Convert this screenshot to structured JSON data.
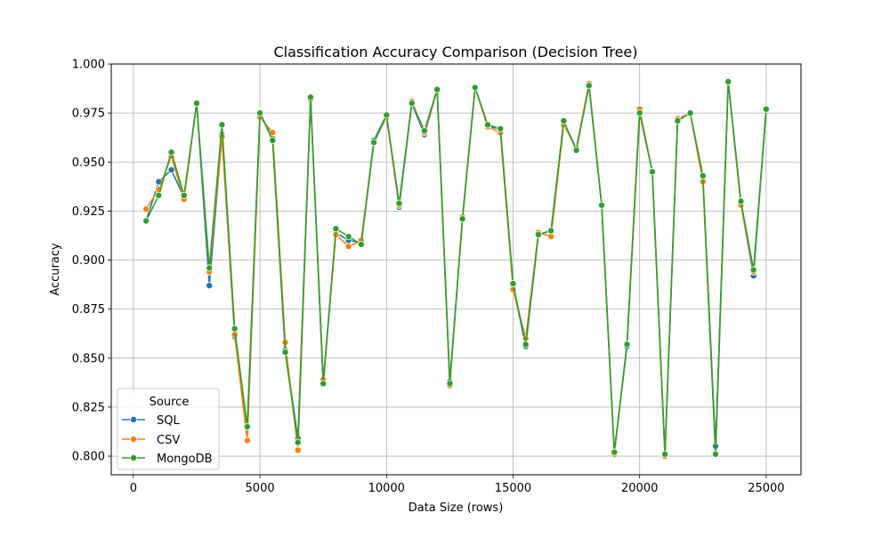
{
  "chart_data": {
    "type": "line",
    "title": "Classification Accuracy Comparison (Decision Tree)",
    "xlabel": "Data Size (rows)",
    "ylabel": "Accuracy",
    "xlim": [
      -875,
      26375
    ],
    "ylim": [
      0.7905,
      1.0
    ],
    "xticks": [
      0,
      5000,
      10000,
      15000,
      20000,
      25000
    ],
    "xtick_labels": [
      "0",
      "5000",
      "10000",
      "15000",
      "20000",
      "25000"
    ],
    "yticks": [
      0.8,
      0.825,
      0.85,
      0.875,
      0.9,
      0.925,
      0.95,
      0.975,
      1.0
    ],
    "ytick_labels": [
      "0.800",
      "0.825",
      "0.850",
      "0.875",
      "0.900",
      "0.925",
      "0.950",
      "0.975",
      "1.000"
    ],
    "grid": true,
    "legend": {
      "title": "Source",
      "position": "lower-left"
    },
    "x": [
      500,
      1000,
      1500,
      2000,
      2500,
      3000,
      3500,
      4000,
      4500,
      5000,
      5500,
      6000,
      6500,
      7000,
      7500,
      8000,
      8500,
      9000,
      9500,
      10000,
      10500,
      11000,
      11500,
      12000,
      12500,
      13000,
      13500,
      14000,
      14500,
      15000,
      15500,
      16000,
      16500,
      17000,
      17500,
      18000,
      18500,
      19000,
      19500,
      20000,
      20500,
      21000,
      21500,
      22000,
      22500,
      23000,
      23500,
      24000,
      24500,
      25000
    ],
    "series": [
      {
        "name": "SQL",
        "color": "#1f77b4",
        "values": [
          0.92,
          0.94,
          0.946,
          0.932,
          0.98,
          0.887,
          0.964,
          0.861,
          0.815,
          0.975,
          0.962,
          0.854,
          0.809,
          0.982,
          0.837,
          0.914,
          0.91,
          0.909,
          0.961,
          0.974,
          0.927,
          0.98,
          0.964,
          0.987,
          0.838,
          0.921,
          0.988,
          0.968,
          0.967,
          0.887,
          0.856,
          0.913,
          0.915,
          0.97,
          0.957,
          0.989,
          0.928,
          0.802,
          0.856,
          0.976,
          0.945,
          0.801,
          0.971,
          0.975,
          0.941,
          0.805,
          0.991,
          0.929,
          0.892,
          0.977
        ]
      },
      {
        "name": "CSV",
        "color": "#ff7f0e",
        "values": [
          0.926,
          0.936,
          0.953,
          0.931,
          0.98,
          0.894,
          0.963,
          0.862,
          0.808,
          0.973,
          0.965,
          0.858,
          0.803,
          0.982,
          0.839,
          0.913,
          0.907,
          0.91,
          0.96,
          0.973,
          0.928,
          0.981,
          0.965,
          0.987,
          0.836,
          0.922,
          0.988,
          0.968,
          0.965,
          0.885,
          0.86,
          0.914,
          0.912,
          0.969,
          0.957,
          0.99,
          0.928,
          0.801,
          0.857,
          0.977,
          0.945,
          0.8,
          0.972,
          0.975,
          0.94,
          0.801,
          0.991,
          0.928,
          0.894,
          0.977
        ]
      },
      {
        "name": "MongoDB",
        "color": "#2ca02c",
        "values": [
          0.92,
          0.933,
          0.955,
          0.933,
          0.98,
          0.896,
          0.969,
          0.865,
          0.815,
          0.975,
          0.961,
          0.853,
          0.807,
          0.983,
          0.837,
          0.916,
          0.912,
          0.908,
          0.96,
          0.974,
          0.929,
          0.98,
          0.966,
          0.987,
          0.837,
          0.921,
          0.988,
          0.969,
          0.967,
          0.888,
          0.857,
          0.913,
          0.915,
          0.971,
          0.956,
          0.989,
          0.928,
          0.802,
          0.857,
          0.975,
          0.945,
          0.801,
          0.971,
          0.975,
          0.943,
          0.801,
          0.991,
          0.93,
          0.895,
          0.977
        ]
      }
    ]
  }
}
